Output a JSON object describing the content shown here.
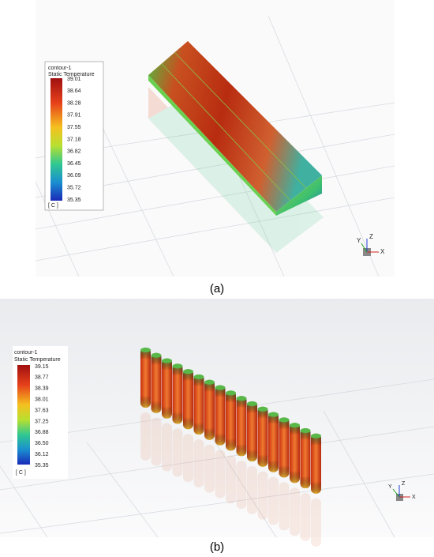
{
  "panels": [
    {
      "legend": {
        "title": "contour-1",
        "subtitle": "Static Temperature",
        "labels": [
          "39.01",
          "38.64",
          "38.28",
          "37.91",
          "37.55",
          "37.18",
          "36.82",
          "36.45",
          "36.09",
          "35.72",
          "35.35"
        ],
        "unit": "[ C ]"
      },
      "triad": {
        "x": "X",
        "y": "Y",
        "z": "Z"
      },
      "caption": "(a)"
    },
    {
      "legend": {
        "title": "contour-1",
        "subtitle": "Static Temperature",
        "labels": [
          "39.15",
          "38.77",
          "38.39",
          "38.01",
          "37.63",
          "37.25",
          "36.88",
          "36.50",
          "36.12",
          "35.35"
        ],
        "unit": "[ C ]"
      },
      "triad": {
        "x": "X",
        "y": "Y",
        "z": "Z"
      },
      "caption": "(b)"
    }
  ]
}
